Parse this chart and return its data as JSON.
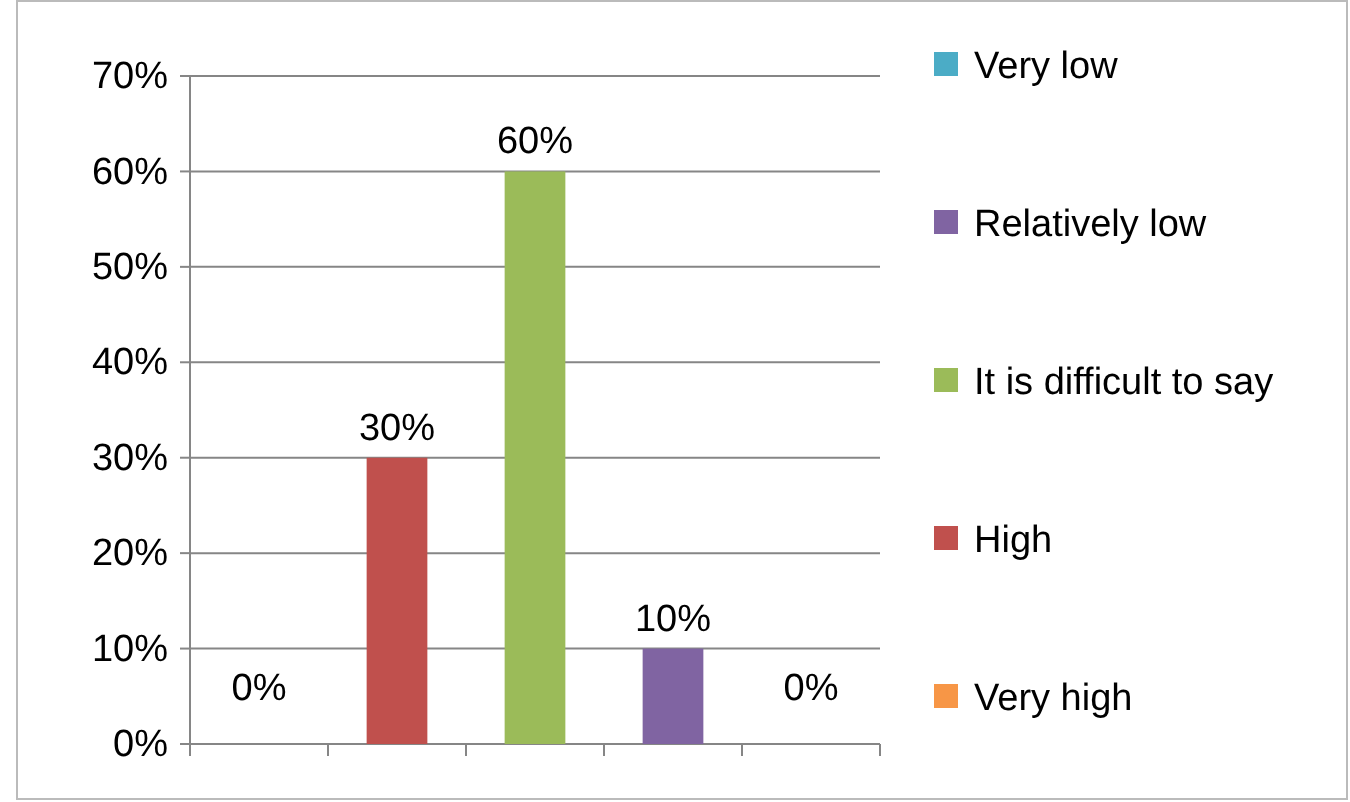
{
  "chart_data": {
    "type": "bar",
    "categories": [
      null,
      null,
      null,
      null,
      null
    ],
    "series": [
      {
        "name": "Very low",
        "color": "#4bacc6",
        "values": [
          0,
          null,
          null,
          null,
          null
        ],
        "value_labels": [
          "0%",
          null,
          null,
          null,
          null
        ]
      },
      {
        "name": "Relatively low",
        "color": "#8064a2",
        "values": [
          null,
          null,
          null,
          10,
          null
        ],
        "value_labels": [
          null,
          null,
          null,
          "10%",
          null
        ]
      },
      {
        "name": "It is difficult to say",
        "color": "#9bbb59",
        "values": [
          null,
          null,
          60,
          null,
          null
        ],
        "value_labels": [
          null,
          null,
          "60%",
          null,
          null
        ]
      },
      {
        "name": "High",
        "color": "#c0504d",
        "values": [
          null,
          30,
          null,
          null,
          null
        ],
        "value_labels": [
          null,
          "30%",
          null,
          null,
          null
        ]
      },
      {
        "name": "Very high",
        "color": "#f79646",
        "values": [
          null,
          null,
          null,
          null,
          0
        ],
        "value_labels": [
          null,
          null,
          null,
          null,
          "0%"
        ]
      }
    ],
    "ylim": [
      0,
      70
    ],
    "yticks": [
      {
        "value": 0,
        "label": "0%"
      },
      {
        "value": 10,
        "label": "10%"
      },
      {
        "value": 20,
        "label": "20%"
      },
      {
        "value": 30,
        "label": "30%"
      },
      {
        "value": 40,
        "label": "40%"
      },
      {
        "value": 50,
        "label": "50%"
      },
      {
        "value": 60,
        "label": "60%"
      },
      {
        "value": 70,
        "label": "70%"
      }
    ],
    "grid": "y",
    "legend": "right"
  }
}
